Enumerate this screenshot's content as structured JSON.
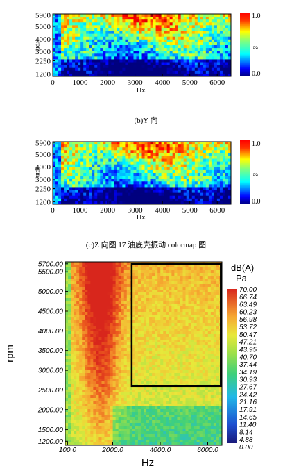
{
  "captions": {
    "b": "(b)Y 向",
    "c": "(c)Z 向图 17 油底壳振动 colormap 图"
  },
  "chart_data": [
    {
      "type": "heatmap",
      "title": "",
      "xlabel": "Hz",
      "ylabel": "rpm",
      "x_ticks": [
        "0",
        "1000",
        "2000",
        "3000",
        "4000",
        "5000",
        "6000"
      ],
      "x_tick_values": [
        0,
        1000,
        2000,
        3000,
        4000,
        5000,
        6000
      ],
      "y_ticks": [
        "5900",
        "5000",
        "4000",
        "3000",
        "2250",
        "1200"
      ],
      "y_tick_values": [
        5900,
        5000,
        4000,
        3000,
        2250,
        1200
      ],
      "xlim": [
        0,
        6500
      ],
      "ylim": [
        1000,
        6000
      ],
      "colorbar": {
        "label": "g",
        "ticks": [
          "1.0",
          "0.0"
        ],
        "range": [
          0,
          1.0
        ]
      }
    },
    {
      "type": "heatmap",
      "title": "",
      "xlabel": "Hz",
      "ylabel": "rpm",
      "x_ticks": [
        "0",
        "1000",
        "2000",
        "3000",
        "4000",
        "5000",
        "6000"
      ],
      "x_tick_values": [
        0,
        1000,
        2000,
        3000,
        4000,
        5000,
        6000
      ],
      "y_ticks": [
        "5900",
        "5000",
        "4000",
        "3000",
        "2250",
        "1200"
      ],
      "y_tick_values": [
        5900,
        5000,
        4000,
        3000,
        2250,
        1200
      ],
      "xlim": [
        0,
        6500
      ],
      "ylim": [
        1000,
        6000
      ],
      "colorbar": {
        "label": "g",
        "ticks": [
          "1.0",
          "0.0"
        ],
        "range": [
          0,
          1.0
        ]
      }
    },
    {
      "type": "heatmap",
      "title": "",
      "xlabel": "Hz",
      "ylabel": "rpm",
      "x_ticks": [
        "100.0",
        "2000.0",
        "4000.0",
        "6000.0"
      ],
      "x_tick_values": [
        100,
        2000,
        4000,
        6000
      ],
      "y_ticks": [
        "5700.00",
        "5500.00",
        "5000.00",
        "4500.00",
        "4000.00",
        "3500.00",
        "3000.00",
        "2500.00",
        "2000.00",
        "1500.00",
        "1200.00"
      ],
      "y_tick_values": [
        5700,
        5500,
        5000,
        4500,
        4000,
        3500,
        3000,
        2500,
        2000,
        1500,
        1200
      ],
      "xlim": [
        0,
        6600
      ],
      "ylim": [
        1100,
        5750
      ],
      "highlight_box": {
        "x": [
          2800,
          6550
        ],
        "y": [
          2600,
          5700
        ]
      },
      "colorbar": {
        "unit_line1": "dB(A)",
        "unit_line2": "Pa",
        "ticks": [
          "70.00",
          "66.74",
          "63.49",
          "60.23",
          "56.98",
          "53.72",
          "50.47",
          "47.21",
          "43.95",
          "40.70",
          "37.44",
          "34.19",
          "30.93",
          "27.67",
          "24.42",
          "21.16",
          "17.91",
          "14.65",
          "11.40",
          "8.14",
          "4.88",
          "0.00"
        ],
        "range": [
          0,
          70
        ]
      }
    }
  ],
  "colors": {
    "jet": [
      "#00007f",
      "#0000ff",
      "#007fff",
      "#00ffff",
      "#7fff7f",
      "#ffff00",
      "#ff7f00",
      "#ff0000",
      "#7f0000"
    ],
    "lms": [
      "#1a1a8a",
      "#1e5fd6",
      "#20b8e8",
      "#3fd07a",
      "#9be04a",
      "#e8e83a",
      "#f6b132",
      "#ec5a1e",
      "#d8261c"
    ]
  }
}
